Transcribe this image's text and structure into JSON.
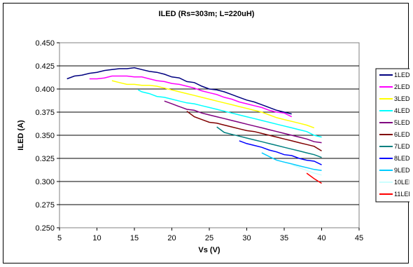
{
  "chart_data": {
    "type": "line",
    "title": "ILED (Rs=303m;  L=220uH)",
    "xlabel": "Vs (V)",
    "ylabel": "ILED (A)",
    "xlim": [
      5,
      45
    ],
    "ylim": [
      0.25,
      0.45
    ],
    "x_ticks": [
      "5",
      "10",
      "15",
      "20",
      "25",
      "30",
      "35",
      "40",
      "45"
    ],
    "y_ticks": [
      "0.250",
      "0.275",
      "0.300",
      "0.325",
      "0.350",
      "0.375",
      "0.400",
      "0.425",
      "0.450"
    ],
    "grid": "horizontal",
    "legend_position": "right",
    "series": [
      {
        "name": "1LED",
        "color": "#000080",
        "points": [
          [
            6,
            0.411
          ],
          [
            7,
            0.414
          ],
          [
            8,
            0.415
          ],
          [
            9,
            0.417
          ],
          [
            10,
            0.418
          ],
          [
            11,
            0.42
          ],
          [
            12,
            0.421
          ],
          [
            13,
            0.422
          ],
          [
            14,
            0.422
          ],
          [
            15,
            0.423
          ],
          [
            16,
            0.421
          ],
          [
            17,
            0.419
          ],
          [
            18,
            0.418
          ],
          [
            19,
            0.416
          ],
          [
            20,
            0.413
          ],
          [
            21,
            0.412
          ],
          [
            22,
            0.408
          ],
          [
            23,
            0.407
          ],
          [
            24,
            0.403
          ],
          [
            25,
            0.4
          ],
          [
            26,
            0.399
          ],
          [
            27,
            0.397
          ],
          [
            28,
            0.394
          ],
          [
            29,
            0.391
          ],
          [
            30,
            0.388
          ],
          [
            31,
            0.386
          ],
          [
            32,
            0.383
          ],
          [
            33,
            0.38
          ],
          [
            34,
            0.377
          ],
          [
            35,
            0.375
          ],
          [
            36,
            0.373
          ]
        ]
      },
      {
        "name": "2LED",
        "color": "#ff00ff",
        "points": [
          [
            9,
            0.411
          ],
          [
            10,
            0.411
          ],
          [
            11,
            0.412
          ],
          [
            12,
            0.414
          ],
          [
            13,
            0.414
          ],
          [
            14,
            0.414
          ],
          [
            15,
            0.413
          ],
          [
            16,
            0.413
          ],
          [
            17,
            0.411
          ],
          [
            18,
            0.409
          ],
          [
            19,
            0.408
          ],
          [
            20,
            0.406
          ],
          [
            21,
            0.405
          ],
          [
            22,
            0.403
          ],
          [
            23,
            0.401
          ],
          [
            24,
            0.398
          ],
          [
            25,
            0.396
          ],
          [
            26,
            0.394
          ],
          [
            27,
            0.391
          ],
          [
            28,
            0.389
          ],
          [
            29,
            0.386
          ],
          [
            30,
            0.384
          ],
          [
            31,
            0.382
          ],
          [
            32,
            0.38
          ],
          [
            33,
            0.377
          ],
          [
            34,
            0.375
          ],
          [
            35,
            0.374
          ],
          [
            36,
            0.37
          ]
        ]
      },
      {
        "name": "3LED",
        "color": "#ffff00",
        "points": [
          [
            12,
            0.409
          ],
          [
            13,
            0.407
          ],
          [
            14,
            0.405
          ],
          [
            15,
            0.405
          ],
          [
            16,
            0.404
          ],
          [
            17,
            0.404
          ],
          [
            18,
            0.403
          ],
          [
            19,
            0.401
          ],
          [
            20,
            0.399
          ],
          [
            21,
            0.397
          ],
          [
            22,
            0.395
          ],
          [
            23,
            0.393
          ],
          [
            24,
            0.391
          ],
          [
            25,
            0.389
          ],
          [
            26,
            0.387
          ],
          [
            27,
            0.385
          ],
          [
            28,
            0.383
          ],
          [
            29,
            0.381
          ],
          [
            30,
            0.379
          ],
          [
            31,
            0.377
          ],
          [
            32,
            0.375
          ],
          [
            33,
            0.372
          ],
          [
            34,
            0.369
          ],
          [
            35,
            0.367
          ],
          [
            36,
            0.365
          ],
          [
            37,
            0.363
          ],
          [
            38,
            0.361
          ],
          [
            39,
            0.358
          ]
        ]
      },
      {
        "name": "4LED",
        "color": "#00ffff",
        "points": [
          [
            15.5,
            0.399
          ],
          [
            16,
            0.397
          ],
          [
            17,
            0.395
          ],
          [
            18,
            0.392
          ],
          [
            19,
            0.391
          ],
          [
            20,
            0.389
          ],
          [
            21,
            0.387
          ],
          [
            22,
            0.385
          ],
          [
            23,
            0.384
          ],
          [
            24,
            0.382
          ],
          [
            25,
            0.38
          ],
          [
            26,
            0.378
          ],
          [
            27,
            0.376
          ],
          [
            28,
            0.374
          ],
          [
            29,
            0.372
          ],
          [
            30,
            0.37
          ],
          [
            31,
            0.368
          ],
          [
            32,
            0.366
          ],
          [
            33,
            0.364
          ],
          [
            34,
            0.362
          ],
          [
            35,
            0.36
          ],
          [
            36,
            0.358
          ],
          [
            37,
            0.356
          ],
          [
            38,
            0.354
          ],
          [
            39,
            0.35
          ],
          [
            40,
            0.348
          ]
        ]
      },
      {
        "name": "5LED",
        "color": "#800080",
        "points": [
          [
            19,
            0.387
          ],
          [
            20,
            0.384
          ],
          [
            21,
            0.381
          ],
          [
            22,
            0.378
          ],
          [
            23,
            0.377
          ],
          [
            24,
            0.374
          ],
          [
            25,
            0.372
          ],
          [
            26,
            0.37
          ],
          [
            27,
            0.368
          ],
          [
            28,
            0.366
          ],
          [
            29,
            0.364
          ],
          [
            30,
            0.362
          ],
          [
            31,
            0.36
          ],
          [
            32,
            0.358
          ],
          [
            33,
            0.356
          ],
          [
            34,
            0.354
          ],
          [
            35,
            0.352
          ],
          [
            36,
            0.35
          ],
          [
            37,
            0.348
          ],
          [
            38,
            0.346
          ],
          [
            39,
            0.343
          ],
          [
            40,
            0.342
          ]
        ]
      },
      {
        "name": "6LED",
        "color": "#800000",
        "points": [
          [
            22,
            0.376
          ],
          [
            23,
            0.37
          ],
          [
            24,
            0.367
          ],
          [
            25,
            0.364
          ],
          [
            26,
            0.363
          ],
          [
            27,
            0.361
          ],
          [
            28,
            0.359
          ],
          [
            29,
            0.357
          ],
          [
            30,
            0.355
          ],
          [
            31,
            0.354
          ],
          [
            32,
            0.352
          ],
          [
            33,
            0.35
          ],
          [
            34,
            0.348
          ],
          [
            35,
            0.346
          ],
          [
            36,
            0.344
          ],
          [
            37,
            0.342
          ],
          [
            38,
            0.34
          ],
          [
            39,
            0.338
          ],
          [
            40,
            0.333
          ]
        ]
      },
      {
        "name": "7LED",
        "color": "#008080",
        "points": [
          [
            26,
            0.359
          ],
          [
            27,
            0.353
          ],
          [
            28,
            0.351
          ],
          [
            29,
            0.349
          ],
          [
            30,
            0.347
          ],
          [
            31,
            0.345
          ],
          [
            32,
            0.343
          ],
          [
            33,
            0.341
          ],
          [
            34,
            0.339
          ],
          [
            35,
            0.337
          ],
          [
            36,
            0.335
          ],
          [
            37,
            0.333
          ],
          [
            38,
            0.331
          ],
          [
            39,
            0.329
          ],
          [
            40,
            0.326
          ]
        ]
      },
      {
        "name": "8LED",
        "color": "#0000ff",
        "points": [
          [
            29,
            0.344
          ],
          [
            30,
            0.341
          ],
          [
            31,
            0.339
          ],
          [
            32,
            0.337
          ],
          [
            33,
            0.334
          ],
          [
            34,
            0.332
          ],
          [
            35,
            0.329
          ],
          [
            36,
            0.328
          ],
          [
            37,
            0.325
          ],
          [
            38,
            0.323
          ],
          [
            39,
            0.322
          ],
          [
            40,
            0.318
          ]
        ]
      },
      {
        "name": "9LED",
        "color": "#00ccff",
        "points": [
          [
            32,
            0.331
          ],
          [
            33,
            0.327
          ],
          [
            34,
            0.323
          ],
          [
            35,
            0.321
          ],
          [
            36,
            0.319
          ],
          [
            37,
            0.317
          ],
          [
            38,
            0.315
          ],
          [
            39,
            0.313
          ],
          [
            40,
            0.312
          ]
        ]
      },
      {
        "name": "10LED",
        "color": "#ccffff",
        "points": [
          [
            36,
            0.318
          ],
          [
            37,
            0.315
          ],
          [
            38,
            0.312
          ],
          [
            39,
            0.309
          ],
          [
            40,
            0.307
          ]
        ]
      },
      {
        "name": "11LED",
        "color": "#ff0000",
        "points": [
          [
            38,
            0.309
          ],
          [
            39,
            0.303
          ],
          [
            40,
            0.298
          ]
        ]
      }
    ]
  }
}
